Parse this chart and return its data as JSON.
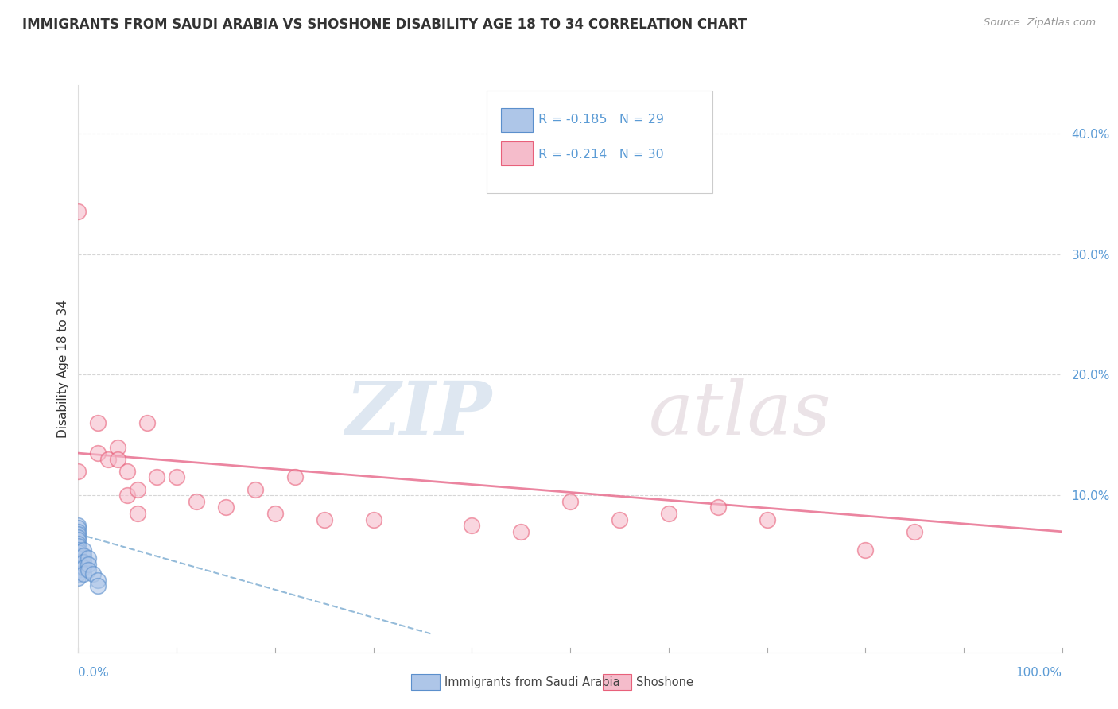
{
  "title": "IMMIGRANTS FROM SAUDI ARABIA VS SHOSHONE DISABILITY AGE 18 TO 34 CORRELATION CHART",
  "source": "Source: ZipAtlas.com",
  "ylabel": "Disability Age 18 to 34",
  "ylabel_right_ticks": [
    "40.0%",
    "30.0%",
    "20.0%",
    "10.0%"
  ],
  "ylabel_right_vals": [
    0.4,
    0.3,
    0.2,
    0.1
  ],
  "xlim": [
    0.0,
    1.0
  ],
  "ylim": [
    -0.03,
    0.44
  ],
  "legend_r_blue": "R = -0.185",
  "legend_n_blue": "N = 29",
  "legend_r_pink": "R = -0.214",
  "legend_n_pink": "N = 30",
  "legend_blue_label": "Immigrants from Saudi Arabia",
  "legend_pink_label": "Shoshone",
  "blue_scatter_x": [
    0.0,
    0.0,
    0.0,
    0.0,
    0.0,
    0.0,
    0.0,
    0.0,
    0.0,
    0.0,
    0.0,
    0.0,
    0.0,
    0.0,
    0.0,
    0.0,
    0.0,
    0.0,
    0.005,
    0.005,
    0.005,
    0.005,
    0.005,
    0.01,
    0.01,
    0.01,
    0.015,
    0.02,
    0.02
  ],
  "blue_scatter_y": [
    0.075,
    0.073,
    0.07,
    0.068,
    0.065,
    0.063,
    0.06,
    0.058,
    0.055,
    0.053,
    0.05,
    0.048,
    0.045,
    0.043,
    0.04,
    0.038,
    0.035,
    0.032,
    0.055,
    0.05,
    0.045,
    0.04,
    0.035,
    0.048,
    0.043,
    0.038,
    0.035,
    0.03,
    0.025
  ],
  "pink_scatter_x": [
    0.0,
    0.0,
    0.02,
    0.02,
    0.03,
    0.04,
    0.04,
    0.05,
    0.05,
    0.06,
    0.06,
    0.07,
    0.08,
    0.1,
    0.12,
    0.15,
    0.18,
    0.2,
    0.22,
    0.25,
    0.3,
    0.4,
    0.45,
    0.5,
    0.55,
    0.6,
    0.65,
    0.7,
    0.8,
    0.85
  ],
  "pink_scatter_y": [
    0.335,
    0.12,
    0.135,
    0.16,
    0.13,
    0.14,
    0.13,
    0.12,
    0.1,
    0.105,
    0.085,
    0.16,
    0.115,
    0.115,
    0.095,
    0.09,
    0.105,
    0.085,
    0.115,
    0.08,
    0.08,
    0.075,
    0.07,
    0.095,
    0.08,
    0.085,
    0.09,
    0.08,
    0.055,
    0.07
  ],
  "blue_line_x": [
    0.0,
    0.36
  ],
  "blue_line_y": [
    0.068,
    -0.015
  ],
  "pink_line_x": [
    0.0,
    1.0
  ],
  "pink_line_y": [
    0.135,
    0.07
  ],
  "watermark_zip": "ZIP",
  "watermark_atlas": "atlas",
  "background_color": "#ffffff",
  "blue_color": "#aec6e8",
  "pink_color": "#f5bccb",
  "blue_edge_color": "#5b8fcc",
  "pink_edge_color": "#e8607a",
  "blue_line_color": "#7aaad0",
  "pink_line_color": "#e87090",
  "grid_color": "#cccccc",
  "title_color": "#333333",
  "axis_color": "#5b9bd5",
  "source_color": "#999999",
  "watermark_zip_color": "#c8d8e8",
  "watermark_atlas_color": "#d8c8d0"
}
